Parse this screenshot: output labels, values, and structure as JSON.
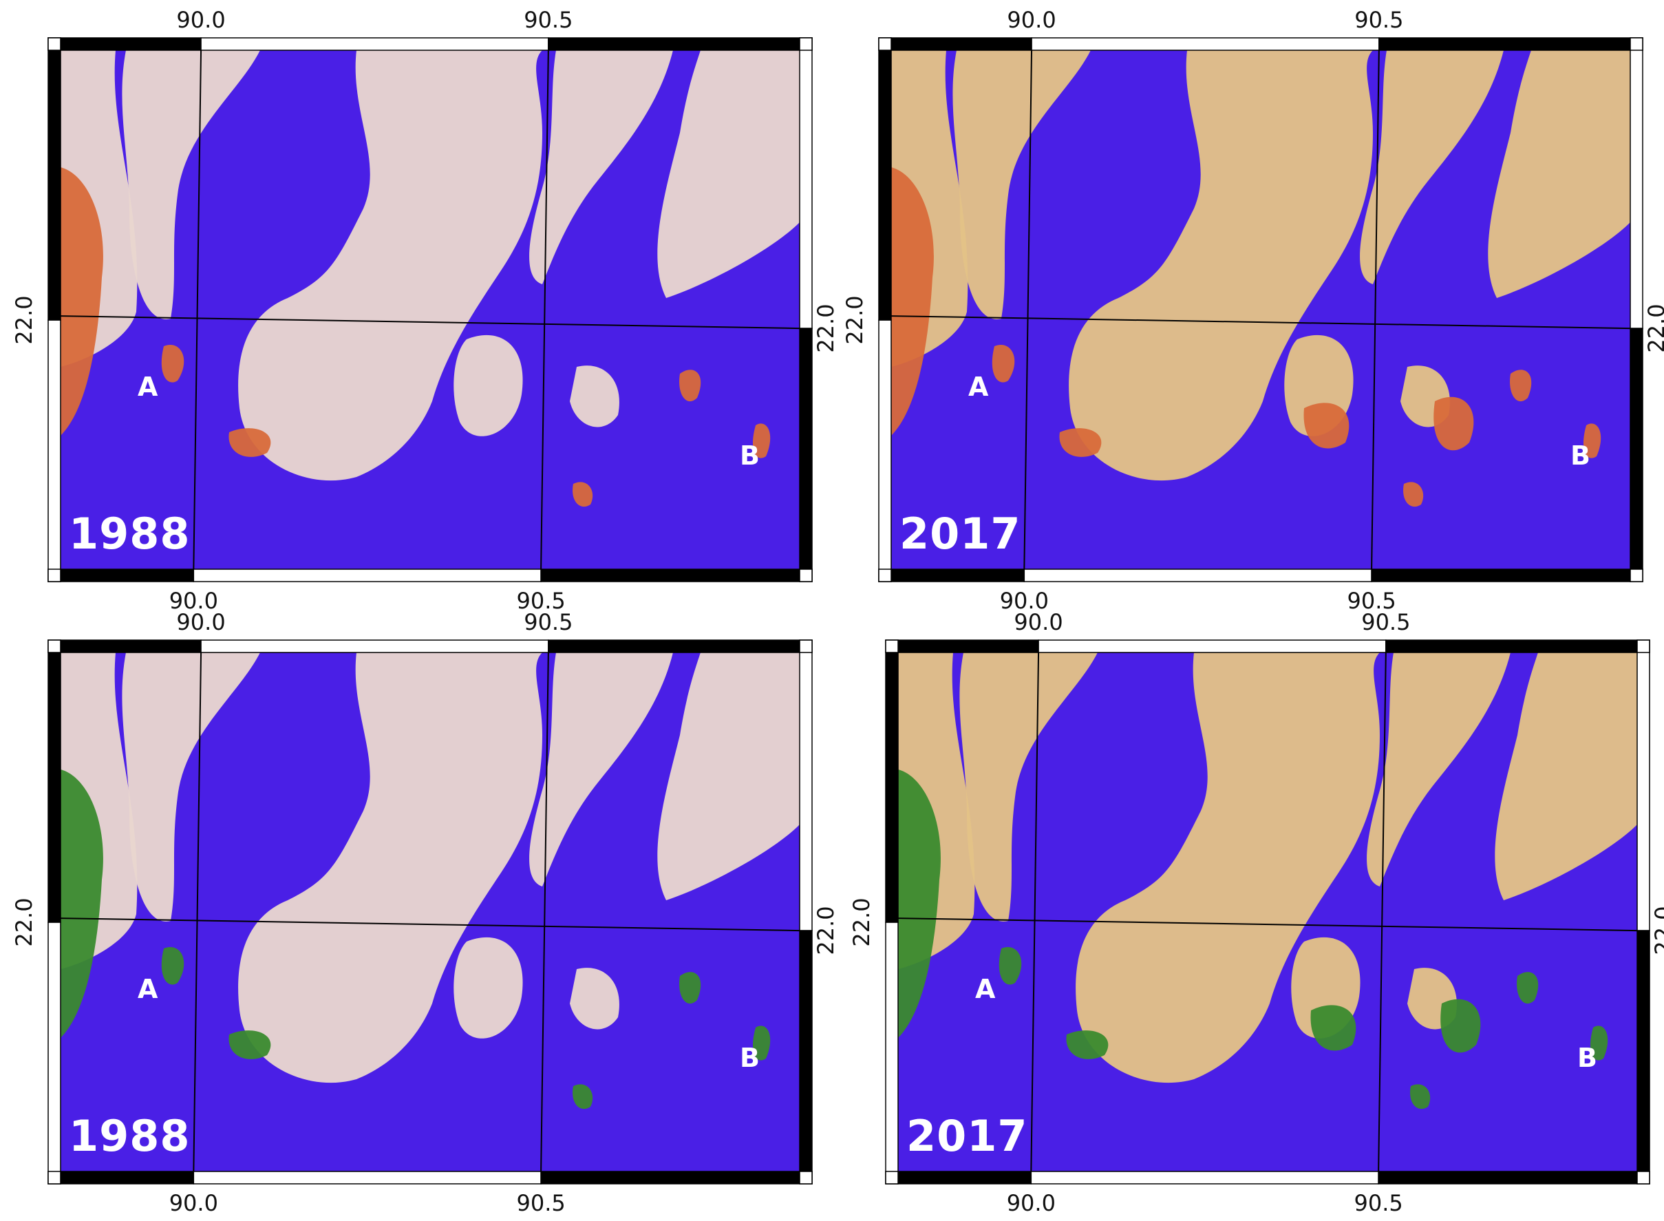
{
  "axes": {
    "lon_ticks": [
      "90.0",
      "90.5"
    ],
    "lat_ticks": [
      "22.0"
    ]
  },
  "colors": {
    "water": "#4a1fe6",
    "deep_water": "#5a22d9",
    "land": "#e9d6cf",
    "land_recent": "#e3c287",
    "accretion_orange": "#d86a3a",
    "accretion_green": "#3a8a2e",
    "frame_black": "#000000",
    "frame_white": "#ffffff"
  },
  "panels": [
    {
      "id": "top-left",
      "year": "1988",
      "marker_a": "A",
      "marker_b": "B",
      "highlight": "orange"
    },
    {
      "id": "top-right",
      "year": "2017",
      "marker_a": "A",
      "marker_b": "B",
      "highlight": "orange"
    },
    {
      "id": "bottom-left",
      "year": "1988",
      "marker_a": "A",
      "marker_b": "B",
      "highlight": "green"
    },
    {
      "id": "bottom-right",
      "year": "2017",
      "marker_a": "A",
      "marker_b": "B",
      "highlight": "green"
    }
  ]
}
